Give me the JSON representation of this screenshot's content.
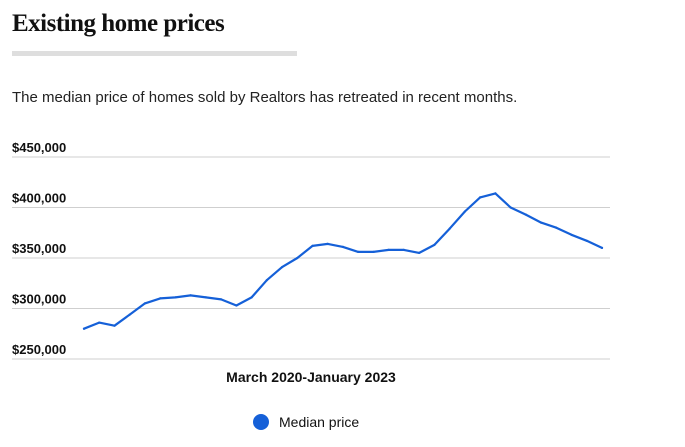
{
  "header": {
    "title": "Existing home prices",
    "subtitle": "The median price of homes sold by Realtors has retreated in recent months."
  },
  "colors": {
    "series": "#1560d8",
    "grid": "#cfcfcf",
    "title_rule": "#dedede"
  },
  "chart_data": {
    "type": "line",
    "title": "Existing home prices",
    "subtitle": "The median price of homes sold by Realtors has retreated in recent months.",
    "xlabel": "March 2020-January 2023",
    "ylabel": "",
    "ylim": [
      250000,
      450000
    ],
    "y_ticks": [
      450000,
      400000,
      350000,
      300000,
      250000
    ],
    "y_tick_labels": [
      "$450,000",
      "$400,000",
      "$350,000",
      "$300,000",
      "$250,000"
    ],
    "x": [
      "2020-03",
      "2020-04",
      "2020-05",
      "2020-06",
      "2020-07",
      "2020-08",
      "2020-09",
      "2020-10",
      "2020-11",
      "2020-12",
      "2021-01",
      "2021-02",
      "2021-03",
      "2021-04",
      "2021-05",
      "2021-06",
      "2021-07",
      "2021-08",
      "2021-09",
      "2021-10",
      "2021-11",
      "2021-12",
      "2022-01",
      "2022-02",
      "2022-03",
      "2022-04",
      "2022-05",
      "2022-06",
      "2022-07",
      "2022-08",
      "2022-09",
      "2022-10",
      "2022-11",
      "2022-12",
      "2023-01"
    ],
    "series": [
      {
        "name": "Median price",
        "values": [
          280000,
          286000,
          283000,
          294000,
          305000,
          310000,
          311000,
          313000,
          311000,
          309000,
          303000,
          311000,
          328000,
          341000,
          350000,
          362000,
          364000,
          361000,
          356000,
          356000,
          358000,
          358000,
          355000,
          363000,
          379000,
          396000,
          410000,
          414000,
          400000,
          393000,
          385000,
          380000,
          373000,
          367000,
          360000
        ]
      }
    ],
    "grid": true,
    "legend_position": "bottom-center"
  }
}
